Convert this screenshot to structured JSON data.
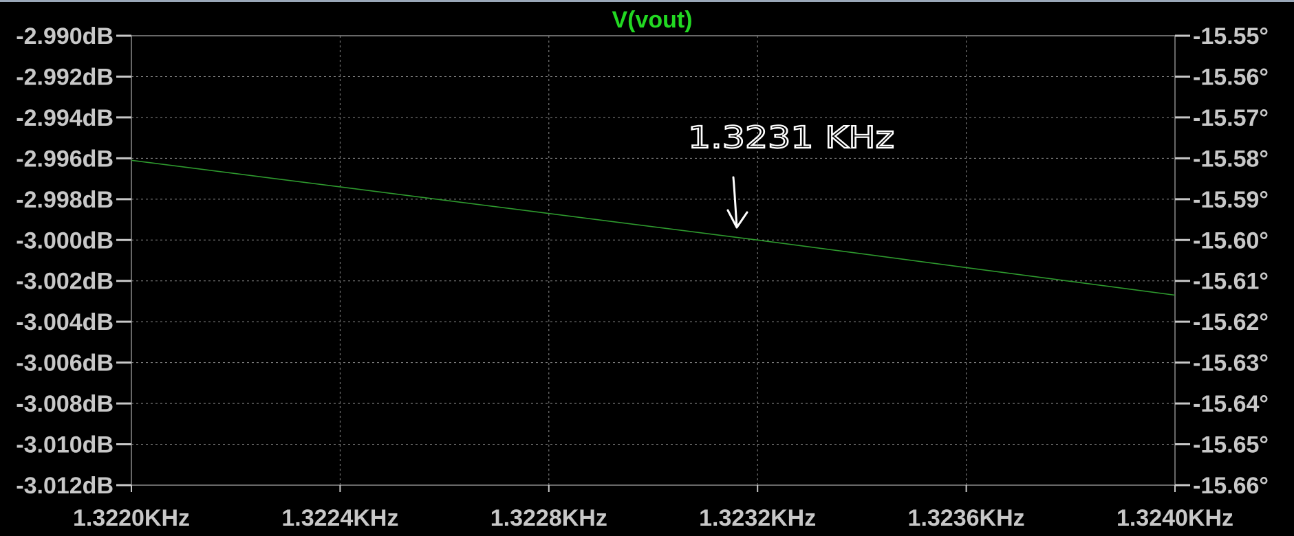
{
  "chart_data": {
    "type": "line",
    "title": "V(vout)",
    "x_tick_labels": [
      "1.3220KHz",
      "1.3224KHz",
      "1.3228KHz",
      "1.3232KHz",
      "1.3236KHz",
      "1.3240KHz"
    ],
    "x_ticks": [
      1.322,
      1.3224,
      1.3228,
      1.3232,
      1.3236,
      1.324
    ],
    "xlim": [
      1.322,
      1.324
    ],
    "x_unit": "KHz",
    "y_left_tick_labels": [
      "-2.990dB",
      "-2.992dB",
      "-2.994dB",
      "-2.996dB",
      "-2.998dB",
      "-3.000dB",
      "-3.002dB",
      "-3.004dB",
      "-3.006dB",
      "-3.008dB",
      "-3.010dB",
      "-3.012dB"
    ],
    "y_left_ticks": [
      -2.99,
      -2.992,
      -2.994,
      -2.996,
      -2.998,
      -3.0,
      -3.002,
      -3.004,
      -3.006,
      -3.008,
      -3.01,
      -3.012
    ],
    "ylim_left": [
      -3.012,
      -2.99
    ],
    "y_right_tick_labels": [
      "-15.55°",
      "-15.56°",
      "-15.57°",
      "-15.58°",
      "-15.59°",
      "-15.60°",
      "-15.61°",
      "-15.62°",
      "-15.63°",
      "-15.64°",
      "-15.65°",
      "-15.66°"
    ],
    "y_right_ticks": [
      -15.55,
      -15.56,
      -15.57,
      -15.58,
      -15.59,
      -15.6,
      -15.61,
      -15.62,
      -15.63,
      -15.64,
      -15.65,
      -15.66
    ],
    "ylim_right": [
      -15.66,
      -15.55
    ],
    "grid": true,
    "series": [
      {
        "axis": "left",
        "x": [
          1.322,
          1.3232,
          1.324
        ],
        "y": [
          -2.9961,
          -3.0,
          -3.0027
        ]
      }
    ],
    "annotations": [
      {
        "text": "1.3231 KHz",
        "x": 1.3231
      }
    ],
    "colors": {
      "background": "#000000",
      "series": "#2e9a2e",
      "title": "#22d922",
      "grid": "#8a8a8a",
      "tick_text": "#c8c8c8",
      "annotation": "#ffffff"
    }
  }
}
